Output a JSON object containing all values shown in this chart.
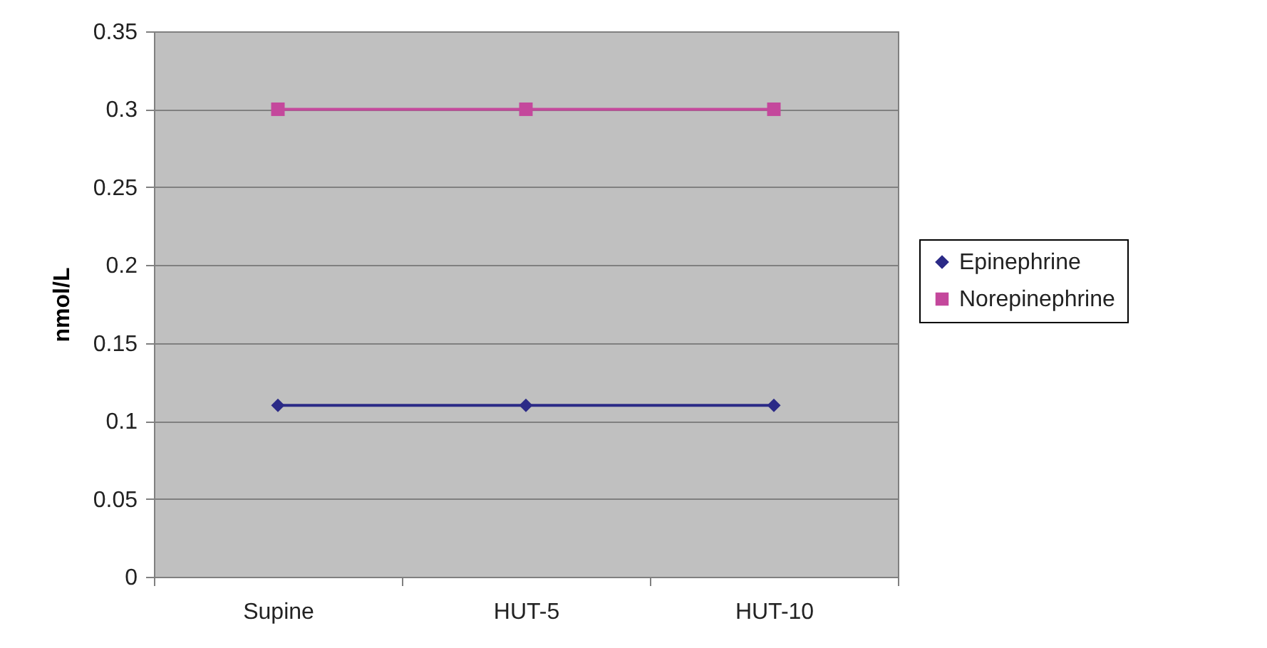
{
  "chart_data": {
    "type": "line",
    "ylabel": "nmol/L",
    "categories": [
      "Supine",
      "HUT-5",
      "HUT-10"
    ],
    "series": [
      {
        "name": "Epinephrine",
        "color": "#2b2a87",
        "values": [
          0.11,
          0.11,
          0.11
        ],
        "marker": "diamond"
      },
      {
        "name": "Norepinephrine",
        "color": "#c4489c",
        "values": [
          0.3,
          0.3,
          0.3
        ],
        "marker": "square"
      }
    ],
    "ylim": [
      0,
      0.35
    ],
    "yticks": [
      0,
      0.05,
      0.1,
      0.15,
      0.2,
      0.25,
      0.3,
      0.35
    ],
    "grid": "y",
    "legend": "right",
    "line_style": "solid"
  }
}
